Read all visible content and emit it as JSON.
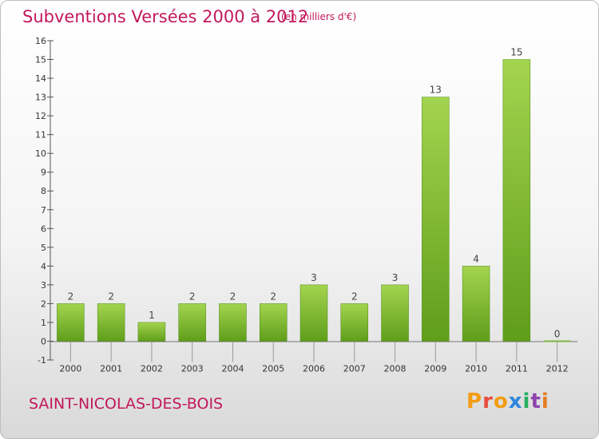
{
  "header": {
    "title": "Subventions Versées 2000 à 2012",
    "unit": "(en milliers d'€)"
  },
  "footer": {
    "commune": "SAINT-NICOLAS-DES-BOIS",
    "logo_text": "Proxiti"
  },
  "colors": {
    "title": "#c2185b",
    "bar_light": "#9fd04f",
    "bar_dark": "#5f9e1a",
    "logo_letters": [
      "#f39c12",
      "#e74c3c",
      "#f39c12",
      "#2e86de",
      "#27ae60",
      "#8e44ad",
      "#e67e22"
    ]
  },
  "chart_data": {
    "type": "bar",
    "categories": [
      "2000",
      "2001",
      "2002",
      "2003",
      "2004",
      "2005",
      "2006",
      "2007",
      "2008",
      "2009",
      "2010",
      "2011",
      "2012"
    ],
    "values": [
      2,
      2,
      1,
      2,
      2,
      2,
      3,
      2,
      3,
      13,
      4,
      15,
      0
    ],
    "ylim": [
      -1,
      16
    ],
    "yticks": [
      -1,
      0,
      1,
      2,
      3,
      4,
      5,
      6,
      7,
      8,
      9,
      10,
      11,
      12,
      13,
      14,
      15,
      16
    ],
    "grid": false,
    "data_labels": true
  }
}
